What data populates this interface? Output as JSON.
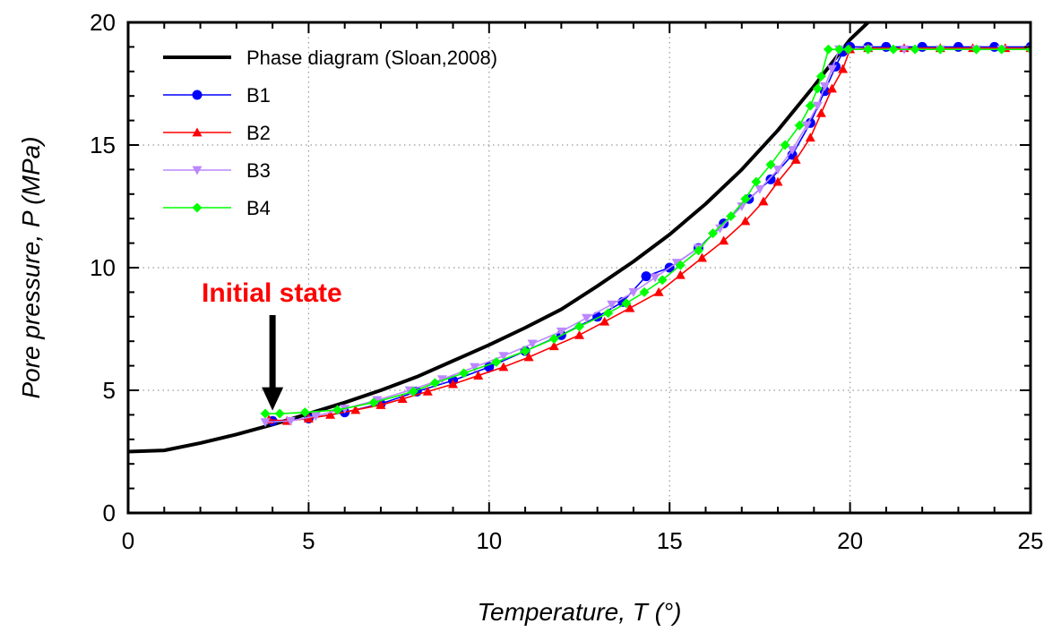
{
  "chart_data": {
    "type": "line",
    "xlabel": "Temperature, T (°)",
    "ylabel": "Pore pressure, P (MPa)",
    "xlim": [
      0,
      25
    ],
    "ylim": [
      0,
      20
    ],
    "xticks": [
      0,
      5,
      10,
      15,
      20,
      25
    ],
    "yticks": [
      0,
      5,
      10,
      15,
      20
    ],
    "grid": "dotted",
    "legend_position": "top-left",
    "annotation": {
      "text": "Initial state",
      "x": 4,
      "y": 4.1
    },
    "series": [
      {
        "name": "Phase diagram (Sloan,2008)",
        "color": "#000000",
        "marker": "none",
        "x": [
          0,
          1,
          2,
          3,
          4,
          5,
          6,
          7,
          8,
          9,
          10,
          11,
          12,
          13,
          14,
          15,
          16,
          17,
          18,
          19,
          20,
          20.5
        ],
        "y": [
          2.5,
          2.55,
          2.85,
          3.2,
          3.6,
          4.05,
          4.5,
          5.0,
          5.55,
          6.2,
          6.85,
          7.55,
          8.3,
          9.25,
          10.25,
          11.35,
          12.6,
          14.0,
          15.6,
          17.4,
          19.3,
          20.0
        ]
      },
      {
        "name": "B1",
        "color": "#0000ff",
        "marker": "circle",
        "x": [
          4.0,
          5.0,
          6.0,
          7.0,
          8.0,
          9.0,
          10.0,
          11.0,
          12.0,
          13.0,
          13.7,
          14.35,
          15.0,
          15.8,
          16.5,
          17.2,
          17.8,
          18.4,
          18.9,
          19.3,
          19.6,
          19.8,
          20.0,
          20.5,
          21.0,
          22.0,
          23.0,
          24.0,
          25.0
        ],
        "y": [
          3.75,
          3.85,
          4.1,
          4.45,
          4.95,
          5.4,
          5.95,
          6.6,
          7.25,
          8.0,
          8.6,
          9.65,
          10.0,
          10.8,
          11.8,
          12.8,
          13.6,
          14.6,
          15.9,
          17.2,
          18.2,
          18.8,
          19.0,
          19.0,
          19.0,
          19.0,
          19.0,
          19.0,
          19.0
        ]
      },
      {
        "name": "B2",
        "color": "#ff0000",
        "marker": "triangle-up",
        "x": [
          3.9,
          4.4,
          5.0,
          5.6,
          6.3,
          7.0,
          7.6,
          8.3,
          9.0,
          9.7,
          10.4,
          11.1,
          11.8,
          12.5,
          13.2,
          13.9,
          14.7,
          15.3,
          15.9,
          16.5,
          17.1,
          17.6,
          18.0,
          18.5,
          18.9,
          19.2,
          19.5,
          19.8,
          20.0,
          20.5,
          21.5,
          22.5,
          23.4,
          24.3,
          25.0
        ],
        "y": [
          3.8,
          3.75,
          3.85,
          4.0,
          4.2,
          4.4,
          4.65,
          4.95,
          5.25,
          5.6,
          5.95,
          6.35,
          6.8,
          7.25,
          7.8,
          8.35,
          9.0,
          9.7,
          10.4,
          11.1,
          11.9,
          12.7,
          13.5,
          14.4,
          15.3,
          16.3,
          17.3,
          18.1,
          18.9,
          18.95,
          18.95,
          18.95,
          18.95,
          18.95,
          18.95
        ]
      },
      {
        "name": "B3",
        "color": "#bb88ff",
        "marker": "triangle-down",
        "x": [
          3.8,
          4.5,
          5.2,
          6.0,
          6.9,
          7.8,
          8.7,
          9.6,
          10.4,
          11.2,
          12.0,
          12.7,
          13.4,
          14.0,
          14.6,
          15.2,
          15.8,
          16.4,
          17.0,
          17.5,
          18.0,
          18.4,
          18.8,
          19.1,
          19.3,
          19.5,
          19.7,
          20.5,
          21.5,
          22.5,
          23.5,
          24.2,
          25.0
        ],
        "y": [
          3.7,
          3.75,
          3.95,
          4.25,
          4.6,
          5.0,
          5.45,
          5.95,
          6.4,
          6.9,
          7.4,
          7.95,
          8.5,
          9.0,
          9.6,
          10.2,
          10.8,
          11.6,
          12.5,
          13.2,
          14.0,
          14.8,
          15.8,
          16.6,
          17.4,
          18.1,
          18.9,
          18.9,
          18.9,
          18.9,
          18.9,
          18.9,
          18.9
        ]
      },
      {
        "name": "B4",
        "color": "#00ff00",
        "marker": "diamond",
        "x": [
          3.8,
          4.2,
          4.9,
          5.8,
          6.8,
          7.9,
          8.5,
          9.3,
          10.2,
          11.0,
          11.8,
          12.5,
          13.3,
          13.8,
          14.3,
          14.8,
          15.3,
          15.8,
          16.2,
          16.7,
          17.1,
          17.4,
          17.8,
          18.2,
          18.6,
          18.9,
          19.1,
          19.2,
          19.4,
          19.7,
          19.95,
          20.5,
          21.2,
          21.8,
          22.5,
          23.5,
          24.2,
          25.0
        ],
        "y": [
          4.05,
          4.05,
          4.1,
          4.2,
          4.5,
          4.95,
          5.3,
          5.7,
          6.15,
          6.6,
          7.1,
          7.6,
          8.15,
          8.55,
          9.0,
          9.5,
          10.1,
          10.7,
          11.4,
          12.1,
          12.8,
          13.5,
          14.2,
          15.0,
          15.8,
          16.6,
          17.3,
          17.8,
          18.9,
          18.9,
          18.9,
          18.9,
          18.9,
          18.9,
          18.9,
          18.9,
          18.9,
          18.9
        ]
      }
    ]
  }
}
